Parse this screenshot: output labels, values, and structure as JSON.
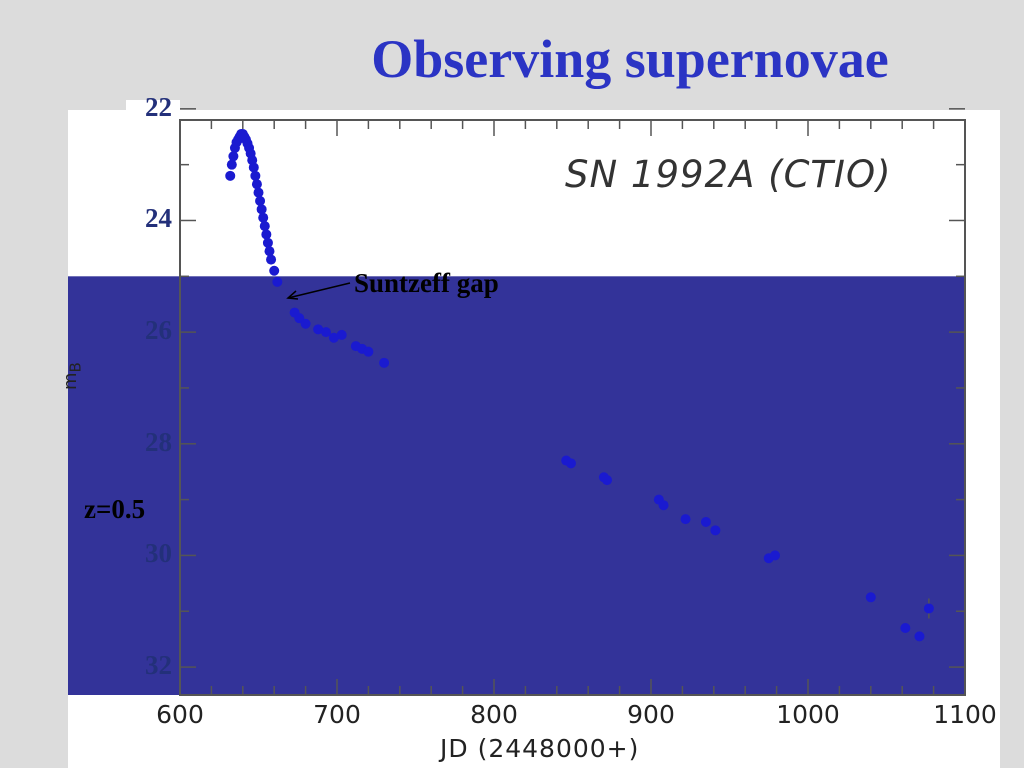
{
  "slide": {
    "title": "Observing supernovae"
  },
  "chart_data": {
    "type": "scatter",
    "title": "",
    "annotation": "SN 1992A (CTIO)",
    "xlabel": "JD (2448000+)",
    "ylabel": "m_B",
    "xlim": [
      600,
      1100
    ],
    "ylim": [
      22.2,
      32.5
    ],
    "y_inverted": true,
    "x_ticks": [
      600,
      700,
      800,
      900,
      1000,
      1100
    ],
    "y_ticks": [
      22,
      24,
      26,
      28,
      30,
      32
    ],
    "y_tick_labels": [
      "22",
      "24",
      "26",
      "28",
      "30",
      "32"
    ],
    "shaded_region": {
      "y_from": 25.0,
      "y_to": 32.5,
      "color": "#333399"
    },
    "gap_label": "Suntzeff gap",
    "redshift_label": "z=0.5",
    "points_color": "#1a1ad0",
    "series": [
      {
        "x": [
          632,
          633,
          634,
          635,
          636,
          637,
          638,
          639,
          640,
          641,
          642,
          643,
          644,
          645,
          646,
          647,
          648,
          649,
          650,
          651,
          652,
          653,
          654,
          655,
          656,
          657,
          658,
          660,
          662,
          673,
          676,
          680,
          688,
          693,
          698,
          703,
          712,
          716,
          720,
          730,
          846,
          849,
          870,
          872,
          905,
          908,
          922,
          935,
          941,
          975,
          979,
          1040,
          1062,
          1071,
          1077
        ],
        "y": [
          23.2,
          23.0,
          22.85,
          22.7,
          22.6,
          22.55,
          22.5,
          22.45,
          22.45,
          22.5,
          22.55,
          22.62,
          22.7,
          22.8,
          22.92,
          23.05,
          23.2,
          23.35,
          23.5,
          23.65,
          23.8,
          23.95,
          24.1,
          24.25,
          24.4,
          24.55,
          24.7,
          24.9,
          25.1,
          25.65,
          25.75,
          25.85,
          25.95,
          26.0,
          26.1,
          26.05,
          26.25,
          26.3,
          26.35,
          26.55,
          28.3,
          28.35,
          28.6,
          28.65,
          29.0,
          29.1,
          29.35,
          29.4,
          29.55,
          30.05,
          30.0,
          30.75,
          31.3,
          31.45,
          30.95
        ]
      }
    ]
  }
}
